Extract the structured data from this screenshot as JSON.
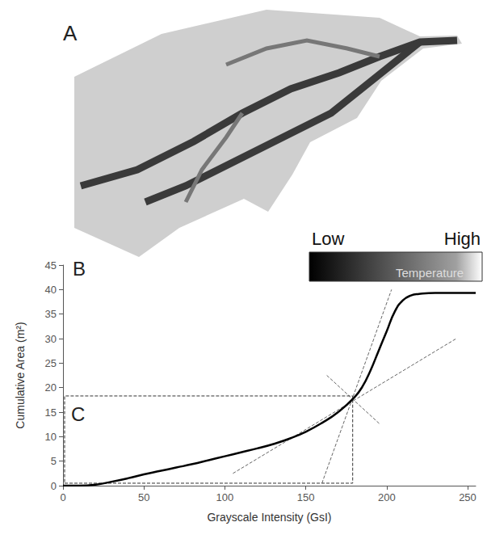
{
  "chart_data": {
    "type": "line",
    "x_label": "Grayscale Intensity (GsI)",
    "y_label": "Cumulative Area (m²)",
    "x": [
      0,
      10,
      20,
      30,
      40,
      50,
      60,
      70,
      80,
      90,
      100,
      110,
      120,
      130,
      140,
      150,
      160,
      170,
      180,
      185,
      190,
      195,
      200,
      205,
      210,
      215,
      220,
      230,
      240,
      255
    ],
    "series": [
      {
        "values": [
          0,
          0,
          0.2,
          0.8,
          1.5,
          2.3,
          3.0,
          3.7,
          4.4,
          5.2,
          6.0,
          6.8,
          7.6,
          8.5,
          9.6,
          11.0,
          12.8,
          15.0,
          18.0,
          20.2,
          23.5,
          27.5,
          31.5,
          35.5,
          37.8,
          38.8,
          39.1,
          39.3,
          39.3,
          39.3
        ],
        "color": "#000000",
        "line_style": "solid"
      }
    ],
    "reference_lines": [
      {
        "x": [
          160,
          203
        ],
        "values": [
          0.5,
          40
        ],
        "color": "#666666",
        "line_style": "dashed"
      },
      {
        "x": [
          105,
          243
        ],
        "values": [
          2.5,
          30
        ],
        "color": "#666666",
        "line_style": "dashed"
      },
      {
        "x": [
          163,
          196
        ],
        "values": [
          22.5,
          12.5
        ],
        "color": "#666666",
        "line_style": "dashed"
      },
      {
        "x": [
          1,
          179,
          179,
          1,
          1
        ],
        "values": [
          0.5,
          0.5,
          18.3,
          18.3,
          0.5
        ],
        "color": "#333333",
        "line_style": "dashed"
      }
    ],
    "xlim": [
      0,
      255
    ],
    "xticks": [
      0,
      50,
      100,
      150,
      200,
      250
    ],
    "ylim": [
      0,
      45
    ],
    "yticks": [
      0,
      5,
      10,
      15,
      20,
      25,
      30,
      35,
      40,
      45
    ],
    "grid": false,
    "panel_labels": [
      "A",
      "B",
      "C"
    ],
    "colorbar": {
      "low": "Low",
      "high": "High",
      "label": "Temperature"
    }
  }
}
